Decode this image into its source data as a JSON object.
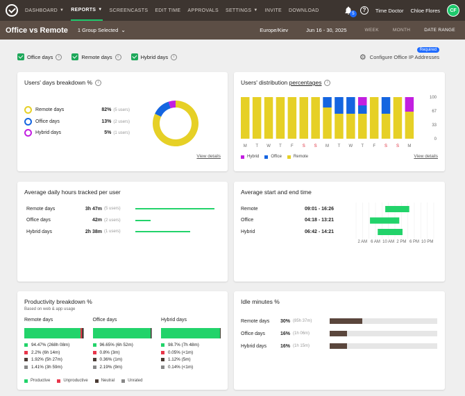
{
  "nav": {
    "items": [
      "DASHBOARD",
      "REPORTS",
      "SCREENCASTS",
      "EDIT TIME",
      "APPROVALS",
      "SETTINGS",
      "INVITE",
      "DOWNLOAD"
    ],
    "notifications": "5",
    "company": "Time Doctor",
    "user": "Chloe Flores",
    "initials": "CF"
  },
  "subbar": {
    "title": "Office vs Remote",
    "group": "1 Group Selected",
    "timezone": "Europe/Kiev",
    "dates": "Jun 16 - 30, 2025",
    "ranges": [
      "WEEK",
      "MONTH",
      "DATE RANGE"
    ]
  },
  "filters": {
    "items": [
      "Office days",
      "Remote days",
      "Hybrid days"
    ],
    "configure": "Configure Office IP Addresses",
    "required": "Required"
  },
  "colors": {
    "remote": "#e6d026",
    "office": "#1565e0",
    "hybrid": "#c21fe0",
    "green": "#22d36a",
    "dark": "#5a463c"
  },
  "breakdown": {
    "title": "Users' days breakdown %",
    "rows": [
      {
        "label": "Remote days",
        "pct": "82%",
        "users": "(5 users)"
      },
      {
        "label": "Office days",
        "pct": "13%",
        "users": "(2 users)"
      },
      {
        "label": "Hybrid days",
        "pct": "5%",
        "users": "(1 users)"
      }
    ],
    "view": "View details"
  },
  "distribution": {
    "title": "Users' distribution",
    "title_link": "percentages",
    "days": [
      "M",
      "T",
      "W",
      "T",
      "F",
      "S",
      "S",
      "M",
      "T",
      "W",
      "T",
      "F",
      "S",
      "S",
      "M"
    ],
    "yticks": [
      "100",
      "67",
      "33",
      "0"
    ],
    "legend": [
      "Hybrid",
      "Office",
      "Remote"
    ],
    "view": "View details"
  },
  "chart_data": {
    "type": "bar",
    "categories": [
      "M",
      "T",
      "W",
      "T",
      "F",
      "S",
      "S",
      "M",
      "T",
      "W",
      "T",
      "F",
      "S",
      "S",
      "M"
    ],
    "ylim": [
      0,
      100
    ],
    "series": [
      {
        "name": "Remote",
        "values": [
          100,
          100,
          100,
          100,
          100,
          100,
          100,
          75,
          60,
          60,
          60,
          100,
          60,
          100,
          65
        ]
      },
      {
        "name": "Office",
        "values": [
          0,
          0,
          0,
          0,
          0,
          0,
          0,
          25,
          40,
          40,
          20,
          0,
          40,
          0,
          0
        ]
      },
      {
        "name": "Hybrid",
        "values": [
          0,
          0,
          0,
          0,
          0,
          0,
          0,
          0,
          0,
          0,
          20,
          0,
          0,
          0,
          35
        ]
      }
    ]
  },
  "avg_hours": {
    "title": "Average daily hours tracked per user",
    "rows": [
      {
        "label": "Remote days",
        "value": "3h 47m",
        "users": "(5 users)",
        "frac": 0.95
      },
      {
        "label": "Office days",
        "value": "42m",
        "users": "(2 users)",
        "frac": 0.18
      },
      {
        "label": "Hybrid days",
        "value": "2h 38m",
        "users": "(1 users)",
        "frac": 0.66
      }
    ]
  },
  "start_end": {
    "title": "Average start and end time",
    "rows": [
      {
        "label": "Remote",
        "value": "09:01 - 16:26",
        "start": 9.02,
        "end": 16.43
      },
      {
        "label": "Office",
        "value": "04:18 - 13:21",
        "start": 4.3,
        "end": 13.35
      },
      {
        "label": "Hybrid",
        "value": "06:42 - 14:21",
        "start": 6.7,
        "end": 14.35
      }
    ],
    "ticks": [
      "2 AM",
      "6 AM",
      "10 AM",
      "2 PM",
      "6 PM",
      "10 PM"
    ]
  },
  "productivity": {
    "title": "Productivity breakdown %",
    "subtitle": "Based on web & app usage",
    "cols": [
      {
        "label": "Remote days",
        "stats": [
          "94.47% (268h 08m)",
          "2.2% (6h 14m)",
          "1.92% (5h 27m)",
          "1.41% (3h 59m)"
        ],
        "values": [
          94.47,
          2.2,
          1.92,
          1.41
        ]
      },
      {
        "label": "Office days",
        "stats": [
          "96.65% (6h 52m)",
          "0.8% (3m)",
          "0.36% (1m)",
          "2.19% (9m)"
        ],
        "values": [
          96.65,
          0.8,
          0.36,
          2.19
        ]
      },
      {
        "label": "Hybrid days",
        "stats": [
          "98.7% (7h 48m)",
          "0.05% (<1m)",
          "1.12% (5m)",
          "0.14% (<1m)"
        ],
        "values": [
          98.7,
          0.05,
          1.12,
          0.14
        ]
      }
    ],
    "legend": [
      "Productive",
      "Unproductive",
      "Neutral",
      "Unrated"
    ]
  },
  "idle": {
    "title": "Idle minutes %",
    "rows": [
      {
        "label": "Remote days",
        "pct": "30%",
        "detail": "(85h 37m)",
        "frac": 0.3
      },
      {
        "label": "Office days",
        "pct": "16%",
        "detail": "(1h 06m)",
        "frac": 0.16
      },
      {
        "label": "Hybrid days",
        "pct": "16%",
        "detail": "(1h 15m)",
        "frac": 0.16
      }
    ]
  }
}
